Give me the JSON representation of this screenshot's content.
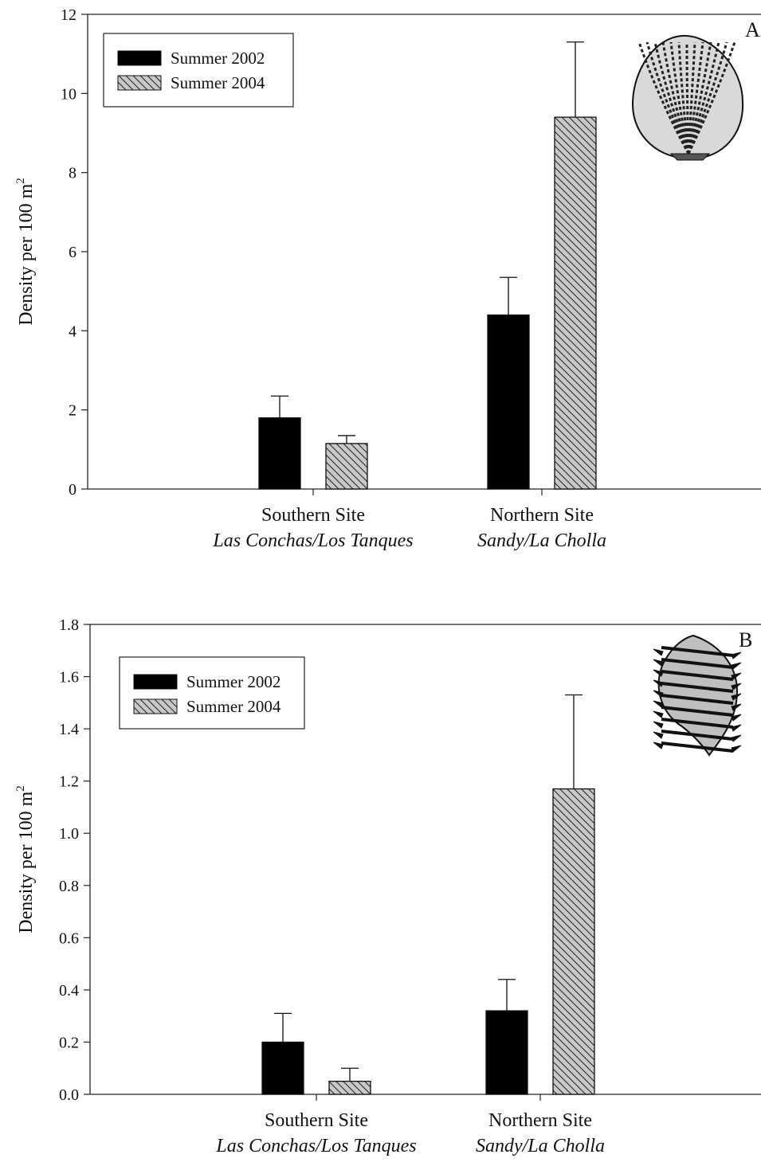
{
  "chart_data": [
    {
      "type": "bar",
      "panel_label": "A",
      "categories": [
        {
          "line1": "Southern Site",
          "line2": "Las Conchas/Los Tanques"
        },
        {
          "line1": "Northern Site",
          "line2": "Sandy/La Cholla"
        }
      ],
      "series": [
        {
          "name": "Summer 2002",
          "values": [
            1.8,
            4.4
          ],
          "errors": [
            0.55,
            0.95
          ]
        },
        {
          "name": "Summer 2004",
          "values": [
            1.15,
            9.4
          ],
          "errors": [
            0.2,
            1.9
          ]
        }
      ],
      "ylabel": "Density per 100 m",
      "ylabel_superscript": "2",
      "ylim": [
        0,
        12
      ],
      "yticks": [
        "0",
        "2",
        "4",
        "6",
        "8",
        "10",
        "12"
      ],
      "legend_position": "top-left",
      "icon": "scallop-shell-icon"
    },
    {
      "type": "bar",
      "panel_label": "B",
      "categories": [
        {
          "line1": "Southern Site",
          "line2": "Las Conchas/Los Tanques"
        },
        {
          "line1": "Northern Site",
          "line2": "Sandy/La Cholla"
        }
      ],
      "series": [
        {
          "name": "Summer 2002",
          "values": [
            0.2,
            0.32
          ],
          "errors": [
            0.11,
            0.12
          ]
        },
        {
          "name": "Summer 2004",
          "values": [
            0.05,
            1.17
          ],
          "errors": [
            0.05,
            0.36
          ]
        }
      ],
      "ylabel": "Density per 100 m",
      "ylabel_superscript": "2",
      "ylim": [
        0,
        1.8
      ],
      "yticks": [
        "0.0",
        "0.2",
        "0.4",
        "0.6",
        "0.8",
        "1.0",
        "1.2",
        "1.4",
        "1.6",
        "1.8"
      ],
      "legend_position": "top-left",
      "icon": "murex-snail-shell-icon"
    }
  ],
  "colors": {
    "series_2002_fill": "#000000",
    "series_2004_fill": "#c8c8c8",
    "hatch": "#222222",
    "axis": "#222222"
  }
}
